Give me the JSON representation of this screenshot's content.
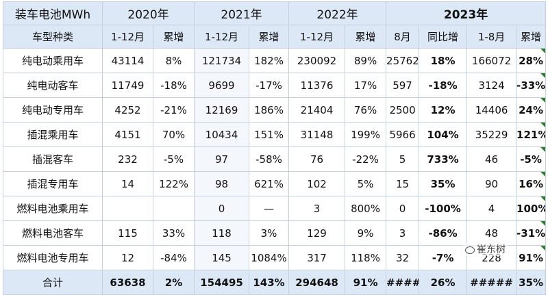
{
  "corner_label": "装车电池MWh",
  "years": [
    "2020年",
    "2021年",
    "2022年",
    "2023年"
  ],
  "row_header": "车型种类",
  "col": {
    "full_year": "1-12月",
    "cum_growth": "累增",
    "aug": "8月",
    "yoy": "同比增",
    "jan_aug": "1-8月"
  },
  "rows": [
    {
      "name": "纯电动乘用车",
      "v2020": "43114",
      "g2020": "8%",
      "v2021": "121734",
      "g2021": "182%",
      "v2022": "230092",
      "g2022": "89%",
      "aug": "25762",
      "yoy": "18%",
      "ytd": "166072",
      "gytd": "28%"
    },
    {
      "name": "纯电动客车",
      "v2020": "11749",
      "g2020": "-18%",
      "v2021": "9699",
      "g2021": "-17%",
      "v2022": "11376",
      "g2022": "17%",
      "aug": "597",
      "yoy": "-18%",
      "ytd": "3124",
      "gytd": "-33%"
    },
    {
      "name": "纯电动专用车",
      "v2020": "4252",
      "g2020": "-21%",
      "v2021": "12169",
      "g2021": "186%",
      "v2022": "21404",
      "g2022": "76%",
      "aug": "2500",
      "yoy": "12%",
      "ytd": "14406",
      "gytd": "24%"
    },
    {
      "name": "插混乘用车",
      "v2020": "4151",
      "g2020": "70%",
      "v2021": "10434",
      "g2021": "151%",
      "v2022": "31148",
      "g2022": "199%",
      "aug": "5966",
      "yoy": "104%",
      "ytd": "35229",
      "gytd": "121%"
    },
    {
      "name": "插混客车",
      "v2020": "232",
      "g2020": "-5%",
      "v2021": "97",
      "g2021": "-58%",
      "v2022": "76",
      "g2022": "-22%",
      "aug": "5",
      "yoy": "733%",
      "ytd": "46",
      "gytd": "-5%"
    },
    {
      "name": "插混专用车",
      "v2020": "14",
      "g2020": "122%",
      "v2021": "98",
      "g2021": "621%",
      "v2022": "102",
      "g2022": "5%",
      "aug": "15",
      "yoy": "35%",
      "ytd": "90",
      "gytd": "16%"
    },
    {
      "name": "燃料电池乘用车",
      "v2020": "",
      "g2020": "",
      "v2021": "0",
      "g2021": "—",
      "v2022": "3",
      "g2022": "800%",
      "aug": "0",
      "yoy": "-100%",
      "ytd": "4",
      "gytd": "100%"
    },
    {
      "name": "燃料电池客车",
      "v2020": "115",
      "g2020": "33%",
      "v2021": "118",
      "g2021": "3%",
      "v2022": "129",
      "g2022": "9%",
      "aug": "3",
      "yoy": "-86%",
      "ytd": "48",
      "gytd": "-31%"
    },
    {
      "name": "燃料电池专用车",
      "v2020": "12",
      "g2020": "-84%",
      "v2021": "145",
      "g2021": "1084%",
      "v2022": "317",
      "g2022": "118%",
      "aug": "32",
      "yoy": "-7%",
      "ytd": "228",
      "gytd": "91%"
    }
  ],
  "total": {
    "name": "合计",
    "v2020": "63638",
    "g2020": "2%",
    "v2021": "154495",
    "g2021": "143%",
    "v2022": "294648",
    "g2022": "91%",
    "aug": "####",
    "yoy": "26%",
    "ytd": "#####",
    "gytd": "35%"
  },
  "watermark": "崔东树",
  "watermark_icon": "wechat-icon"
}
